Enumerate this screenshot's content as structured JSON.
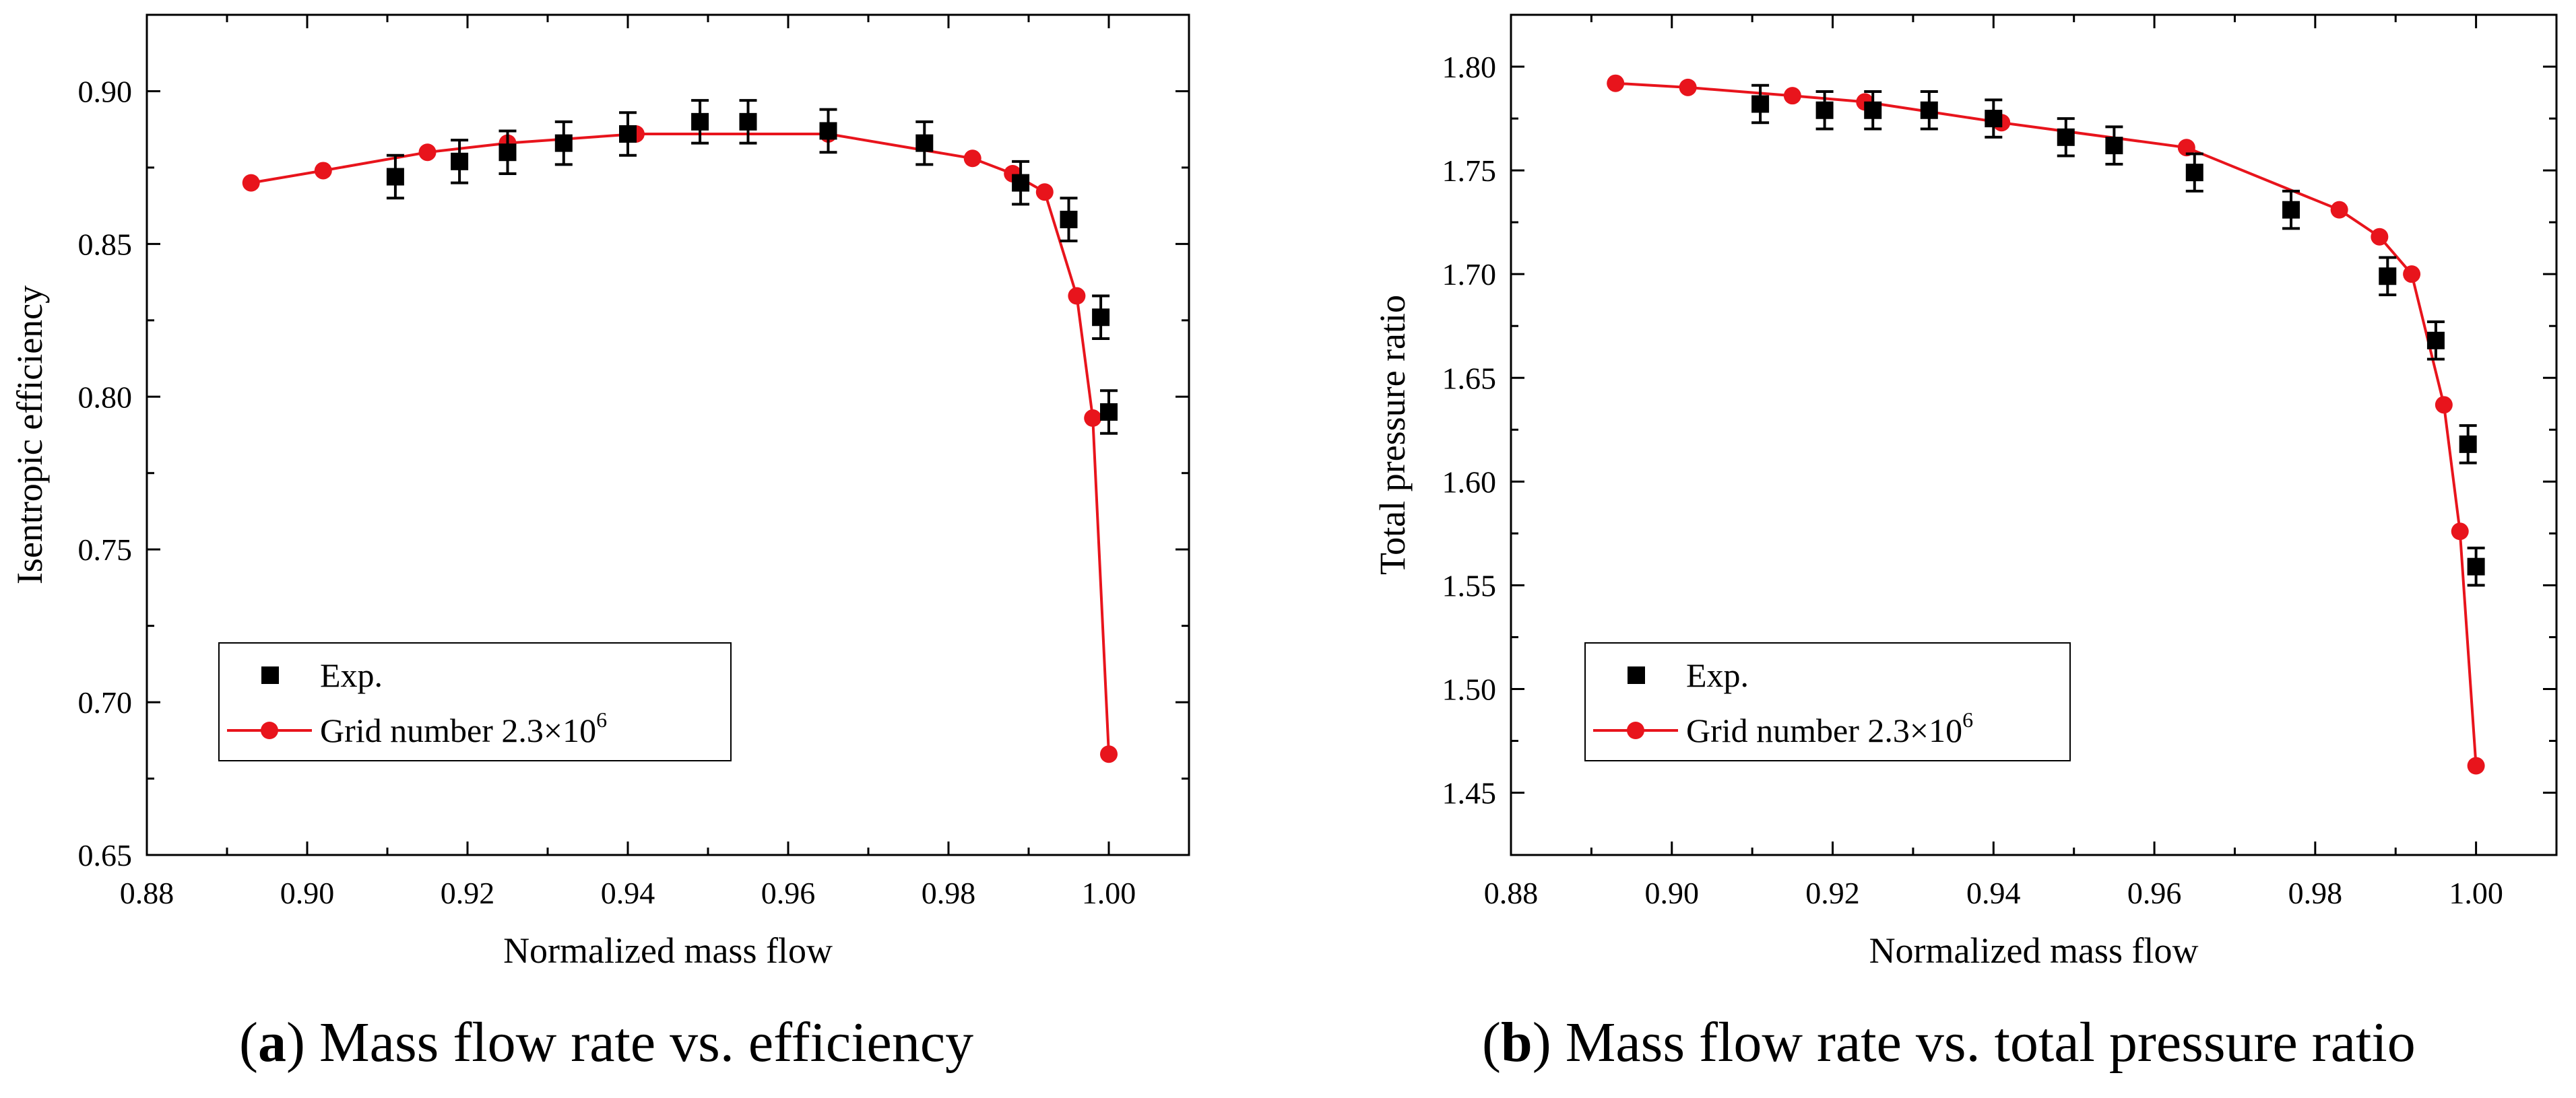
{
  "captions": [
    {
      "letter": "a",
      "text": " Mass flow rate vs. efficiency"
    },
    {
      "letter": "b",
      "text": " Mass flow rate vs. total pressure ratio"
    }
  ],
  "colors": {
    "sim": "#e8141c",
    "exp": "#000000",
    "axis": "#000000"
  },
  "chart_data": [
    {
      "type": "line",
      "xlabel": "Normalized mass flow",
      "ylabel": "Isentropic efficiency",
      "xlim": [
        0.88,
        1.01
      ],
      "ylim": [
        0.65,
        0.925
      ],
      "xticks": [
        "0.88",
        "0.90",
        "0.92",
        "0.94",
        "0.96",
        "0.98",
        "1.00"
      ],
      "xtick_values": [
        0.88,
        0.9,
        0.92,
        0.94,
        0.96,
        0.98,
        1.0
      ],
      "yticks": [
        "0.65",
        "0.70",
        "0.75",
        "0.80",
        "0.85",
        "0.90"
      ],
      "ytick_values": [
        0.65,
        0.7,
        0.75,
        0.8,
        0.85,
        0.9
      ],
      "legend_position": "bottom-left",
      "legend": [
        {
          "label": "Exp.",
          "marker": "square"
        },
        {
          "label": "Grid number 2.3×10",
          "sup": "6",
          "marker": "circle-line"
        }
      ],
      "series": [
        {
          "name": "Exp.",
          "style": "square-errorbar",
          "x": [
            0.911,
            0.919,
            0.925,
            0.932,
            0.94,
            0.949,
            0.955,
            0.965,
            0.977,
            0.989,
            0.995,
            0.999,
            1.0
          ],
          "y": [
            0.872,
            0.877,
            0.88,
            0.883,
            0.886,
            0.89,
            0.89,
            0.887,
            0.883,
            0.87,
            0.858,
            0.826,
            0.795
          ],
          "err": [
            0.007,
            0.007,
            0.007,
            0.007,
            0.007,
            0.007,
            0.007,
            0.007,
            0.007,
            0.007,
            0.007,
            0.007,
            0.007
          ]
        },
        {
          "name": "Grid number 2.3×10^6",
          "style": "circle-line",
          "x": [
            0.893,
            0.902,
            0.915,
            0.925,
            0.941,
            0.965,
            0.983,
            0.988,
            0.992,
            0.996,
            0.998,
            1.0
          ],
          "y": [
            0.87,
            0.874,
            0.88,
            0.883,
            0.886,
            0.886,
            0.878,
            0.873,
            0.867,
            0.833,
            0.793,
            0.683
          ]
        }
      ]
    },
    {
      "type": "line",
      "xlabel": "Normalized mass flow",
      "ylabel": "Total pressure ratio",
      "xlim": [
        0.88,
        1.01
      ],
      "ylim": [
        1.42,
        1.825
      ],
      "xticks": [
        "0.88",
        "0.90",
        "0.92",
        "0.94",
        "0.96",
        "0.98",
        "1.00"
      ],
      "xtick_values": [
        0.88,
        0.9,
        0.92,
        0.94,
        0.96,
        0.98,
        1.0
      ],
      "yticks": [
        "1.45",
        "1.50",
        "1.55",
        "1.60",
        "1.65",
        "1.70",
        "1.75",
        "1.80"
      ],
      "ytick_values": [
        1.45,
        1.5,
        1.55,
        1.6,
        1.65,
        1.7,
        1.75,
        1.8
      ],
      "legend_position": "bottom-left",
      "legend": [
        {
          "label": "Exp.",
          "marker": "square"
        },
        {
          "label": "Grid number 2.3×10",
          "sup": "6",
          "marker": "circle-line"
        }
      ],
      "series": [
        {
          "name": "Exp.",
          "style": "square-errorbar",
          "x": [
            0.911,
            0.919,
            0.925,
            0.932,
            0.94,
            0.949,
            0.955,
            0.965,
            0.977,
            0.989,
            0.995,
            0.999,
            1.0
          ],
          "y": [
            1.782,
            1.779,
            1.779,
            1.779,
            1.775,
            1.766,
            1.762,
            1.749,
            1.731,
            1.699,
            1.668,
            1.618,
            1.559
          ],
          "err": [
            0.009,
            0.009,
            0.009,
            0.009,
            0.009,
            0.009,
            0.009,
            0.009,
            0.009,
            0.009,
            0.009,
            0.009,
            0.009
          ]
        },
        {
          "name": "Grid number 2.3×10^6",
          "style": "circle-line",
          "x": [
            0.893,
            0.902,
            0.915,
            0.924,
            0.941,
            0.964,
            0.983,
            0.988,
            0.992,
            0.996,
            0.998,
            1.0
          ],
          "y": [
            1.792,
            1.79,
            1.786,
            1.783,
            1.773,
            1.761,
            1.731,
            1.718,
            1.7,
            1.637,
            1.576,
            1.463
          ]
        }
      ]
    }
  ]
}
